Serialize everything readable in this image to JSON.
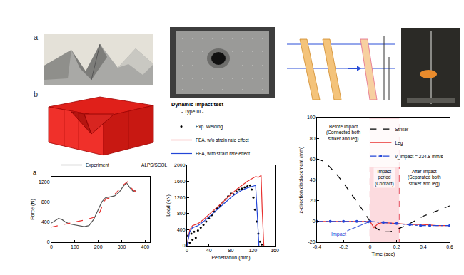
{
  "figure_labels": [
    "a",
    "b"
  ],
  "chart_data": [
    {
      "type": "line",
      "label": "a",
      "ylabel": "Force (N)",
      "xlim": [
        0,
        420
      ],
      "xticks": [
        0,
        100,
        200,
        300,
        400
      ],
      "ylim": [
        0,
        1300
      ],
      "yticks": [
        0,
        400,
        800,
        1200
      ],
      "grid": false,
      "legend": "top",
      "series": [
        {
          "name": "Experiment",
          "color": "#555555",
          "line_style": "solid",
          "x": [
            0,
            15,
            30,
            45,
            60,
            80,
            100,
            120,
            140,
            160,
            180,
            200,
            215,
            230,
            250,
            270,
            290,
            305,
            320,
            335,
            350,
            360
          ],
          "values": [
            380,
            430,
            470,
            450,
            400,
            360,
            340,
            320,
            310,
            330,
            450,
            650,
            800,
            880,
            900,
            920,
            1000,
            1100,
            1180,
            1080,
            1000,
            1040
          ]
        },
        {
          "name": "ALPS/SCOL",
          "color": "#e8312f",
          "line_style": "dash",
          "x": [
            0,
            50,
            100,
            150,
            200,
            215,
            230,
            260,
            290,
            310,
            325,
            345,
            360
          ],
          "values": [
            300,
            350,
            400,
            450,
            520,
            700,
            850,
            900,
            1050,
            1150,
            1200,
            1050,
            1000
          ]
        }
      ]
    },
    {
      "type": "line",
      "title": "Dynamic impact test",
      "subtitle": "- Type III -",
      "xlabel": "Penetration (mm)",
      "ylabel": "Load (kN)",
      "xlim": [
        0,
        160
      ],
      "xticks": [
        0,
        40,
        80,
        120,
        160
      ],
      "ylim": [
        0,
        2000
      ],
      "yticks": [
        0,
        400,
        800,
        1200,
        1600,
        2000
      ],
      "grid": false,
      "legend": "top",
      "series": [
        {
          "name": "Exp. Welding",
          "type": "scatter",
          "marker": "circle",
          "color": "#000000",
          "x": [
            2,
            5,
            8,
            10,
            13,
            16,
            20,
            25,
            30,
            35,
            40,
            45,
            50,
            55,
            60,
            65,
            70,
            75,
            80,
            85,
            90,
            95,
            100,
            105,
            110,
            115,
            118,
            121,
            124,
            127,
            130,
            133,
            136
          ],
          "values": [
            250,
            80,
            300,
            150,
            350,
            200,
            380,
            450,
            520,
            600,
            680,
            760,
            850,
            930,
            1000,
            1080,
            1150,
            1230,
            1300,
            1280,
            1350,
            1400,
            1420,
            1450,
            1480,
            1500,
            1400,
            1200,
            900,
            600,
            300,
            100,
            30
          ]
        },
        {
          "name": "FEA, w/o strain rate effect",
          "color": "#e8312f",
          "line_style": "solid",
          "x": [
            0,
            5,
            10,
            20,
            30,
            40,
            50,
            60,
            70,
            80,
            90,
            100,
            110,
            120,
            125,
            130,
            135,
            137,
            140
          ],
          "values": [
            0,
            400,
            500,
            550,
            650,
            780,
            900,
            1020,
            1150,
            1280,
            1400,
            1500,
            1600,
            1680,
            1720,
            1700,
            1750,
            900,
            0
          ]
        },
        {
          "name": "FEA, with strain rate effect",
          "color": "#2346d8",
          "line_style": "solid",
          "x": [
            0,
            5,
            10,
            20,
            30,
            40,
            50,
            60,
            70,
            80,
            90,
            100,
            110,
            120,
            125,
            128,
            131
          ],
          "values": [
            0,
            350,
            450,
            500,
            600,
            720,
            850,
            960,
            1080,
            1200,
            1300,
            1380,
            1440,
            1480,
            1500,
            800,
            0
          ]
        }
      ]
    },
    {
      "type": "line",
      "xlabel": "Time (sec)",
      "ylabel": "z-direction displacement (mm)",
      "xlim": [
        -0.4,
        0.6
      ],
      "xticks": [
        -0.4,
        -0.2,
        0,
        0.2,
        0.4,
        0.6
      ],
      "ylim": [
        -20,
        100
      ],
      "yticks": [
        -20,
        0,
        20,
        40,
        60,
        80,
        100
      ],
      "grid": false,
      "legend": "top right",
      "impact_period": [
        0,
        0.22
      ],
      "annotations": {
        "before": "Before impact",
        "before_note": "(Connected both striker and leg)",
        "during": "Impact period",
        "during_note": "(Contact)",
        "after": "After impact",
        "after_note": "(Separated both striker and leg)",
        "impact": "Impact"
      },
      "series": [
        {
          "name": "Striker",
          "color": "#000000",
          "line_style": "dash",
          "x": [
            -0.4,
            -0.35,
            -0.3,
            -0.25,
            -0.2,
            -0.15,
            -0.1,
            -0.05,
            0,
            0.05,
            0.1,
            0.15,
            0.2,
            0.25,
            0.3,
            0.4,
            0.5,
            0.6
          ],
          "values": [
            60,
            58,
            52,
            45,
            37,
            28,
            19,
            10,
            0,
            -7,
            -10,
            -10,
            -8,
            -5,
            -2,
            5,
            10,
            15
          ]
        },
        {
          "name": "Leg",
          "color": "#e8312f",
          "line_style": "solid",
          "x": [
            -0.4,
            -0.3,
            -0.2,
            -0.1,
            -0.05,
            0,
            0.03,
            0.06,
            0.1,
            0.2,
            0.3,
            0.4,
            0.5,
            0.6
          ],
          "values": [
            0,
            0,
            0,
            0,
            0,
            0,
            -6,
            -2,
            -1,
            -2,
            -3,
            -3,
            -4,
            -4
          ]
        },
        {
          "name": "v_impact = 234.8 mm/s",
          "color": "#2346d8",
          "line_style": "dashdot",
          "marker": "circle",
          "x": [
            -0.4,
            -0.3,
            -0.2,
            -0.1,
            0,
            0.1,
            0.2,
            0.3,
            0.38,
            0.45,
            0.6
          ],
          "values": [
            0,
            0,
            0,
            0,
            0,
            -1,
            -2,
            -3,
            -4,
            -4,
            -4
          ]
        }
      ]
    }
  ]
}
